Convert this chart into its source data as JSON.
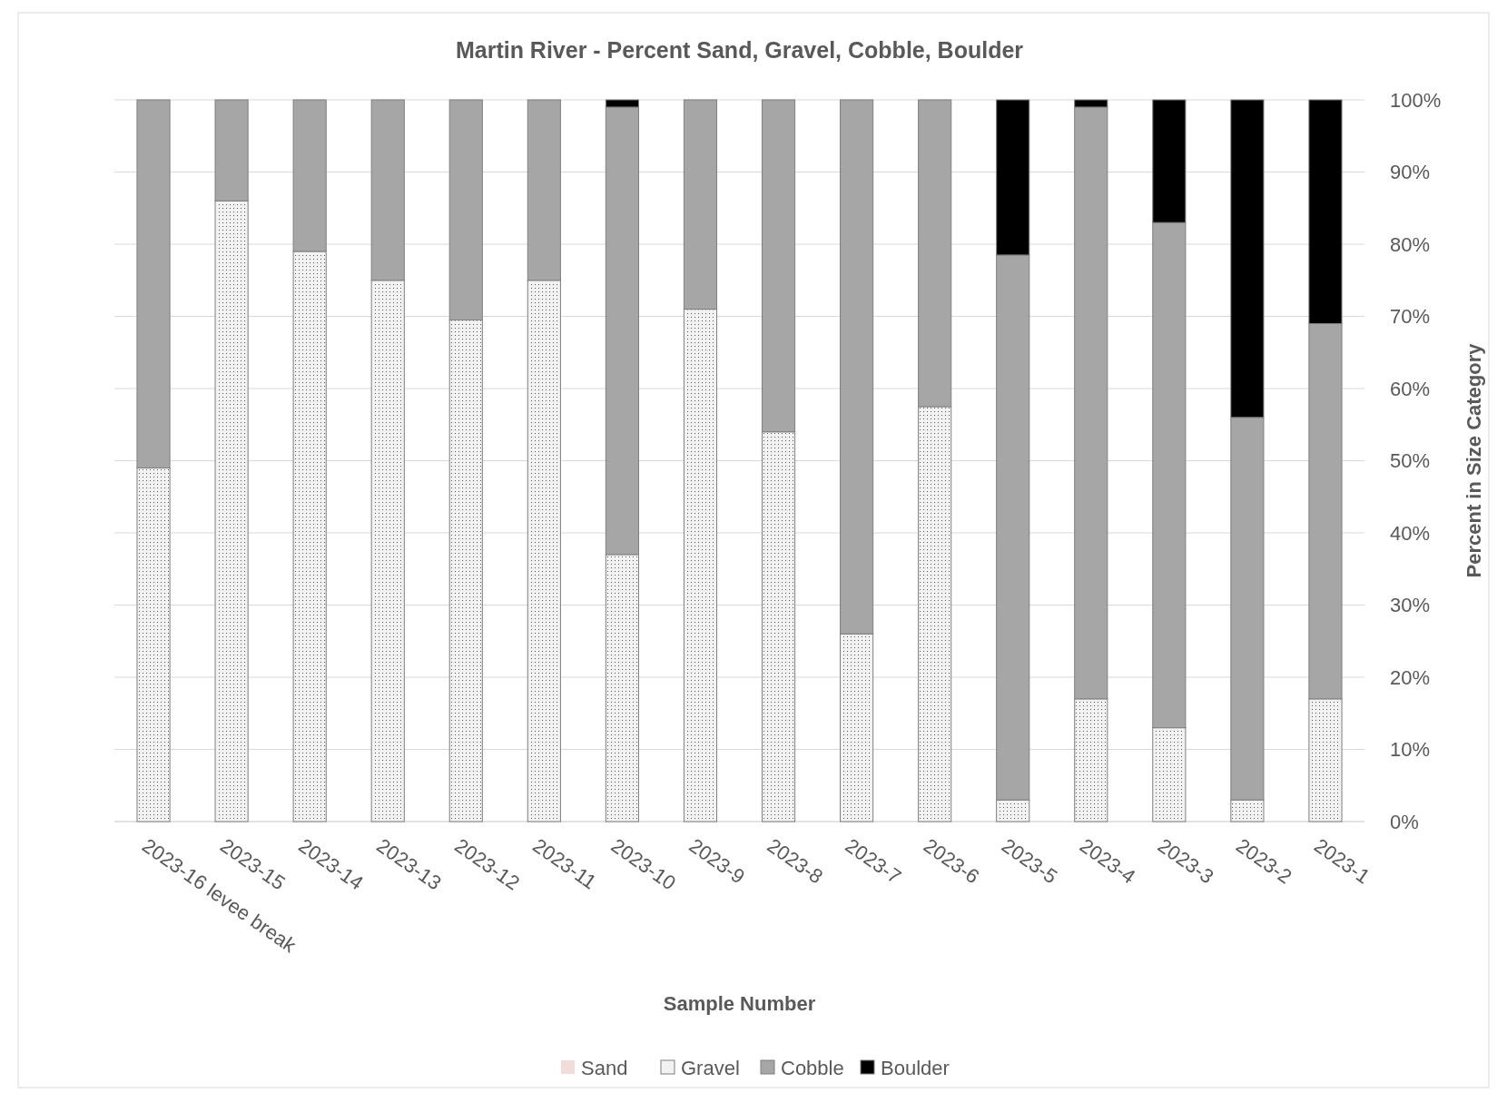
{
  "chart_data": {
    "type": "bar",
    "stacked": true,
    "title": "Martin River - Percent Sand, Gravel, Cobble, Boulder",
    "xlabel": "Sample Number",
    "ylabel": "Percent in Size Category",
    "categories": [
      "2023-16 levee break",
      "2023-15",
      "2023-14",
      "2023-13",
      "2023-12",
      "2023-11",
      "2023-10",
      "2023-9",
      "2023-8",
      "2023-7",
      "2023-6",
      "2023-5",
      "2023-4",
      "2023-3",
      "2023-2",
      "2023-1"
    ],
    "series": [
      {
        "name": "Sand",
        "color": "#f2dcdb",
        "values": [
          0,
          0,
          0,
          0,
          0,
          0,
          0,
          0,
          0,
          0,
          0,
          0,
          0,
          0,
          0,
          0
        ]
      },
      {
        "name": "Gravel",
        "color": "#f2f2f2",
        "values": [
          49,
          86,
          79,
          75,
          69.5,
          75,
          37,
          71,
          54,
          26,
          57.5,
          3,
          17,
          13,
          3,
          17
        ]
      },
      {
        "name": "Cobble",
        "color": "#a6a6a6",
        "values": [
          51,
          14,
          21,
          25,
          30.5,
          25,
          62,
          29,
          46,
          74,
          42.5,
          75.5,
          82,
          70,
          53,
          52
        ]
      },
      {
        "name": "Boulder",
        "color": "#000000",
        "values": [
          0,
          0,
          0,
          0,
          0,
          0,
          1,
          0,
          0,
          0,
          0,
          21.5,
          1,
          17,
          44,
          31
        ]
      }
    ],
    "ylim": [
      0,
      100
    ],
    "yticks": [
      {
        "value": 0,
        "label": "0%"
      },
      {
        "value": 10,
        "label": "10%"
      },
      {
        "value": 20,
        "label": "20%"
      },
      {
        "value": 30,
        "label": "30%"
      },
      {
        "value": 40,
        "label": "40%"
      },
      {
        "value": 50,
        "label": "50%"
      },
      {
        "value": 60,
        "label": "60%"
      },
      {
        "value": 70,
        "label": "70%"
      },
      {
        "value": 80,
        "label": "80%"
      },
      {
        "value": 90,
        "label": "90%"
      },
      {
        "value": 100,
        "label": "100%"
      }
    ],
    "grid": "y",
    "legend": "bottom"
  }
}
